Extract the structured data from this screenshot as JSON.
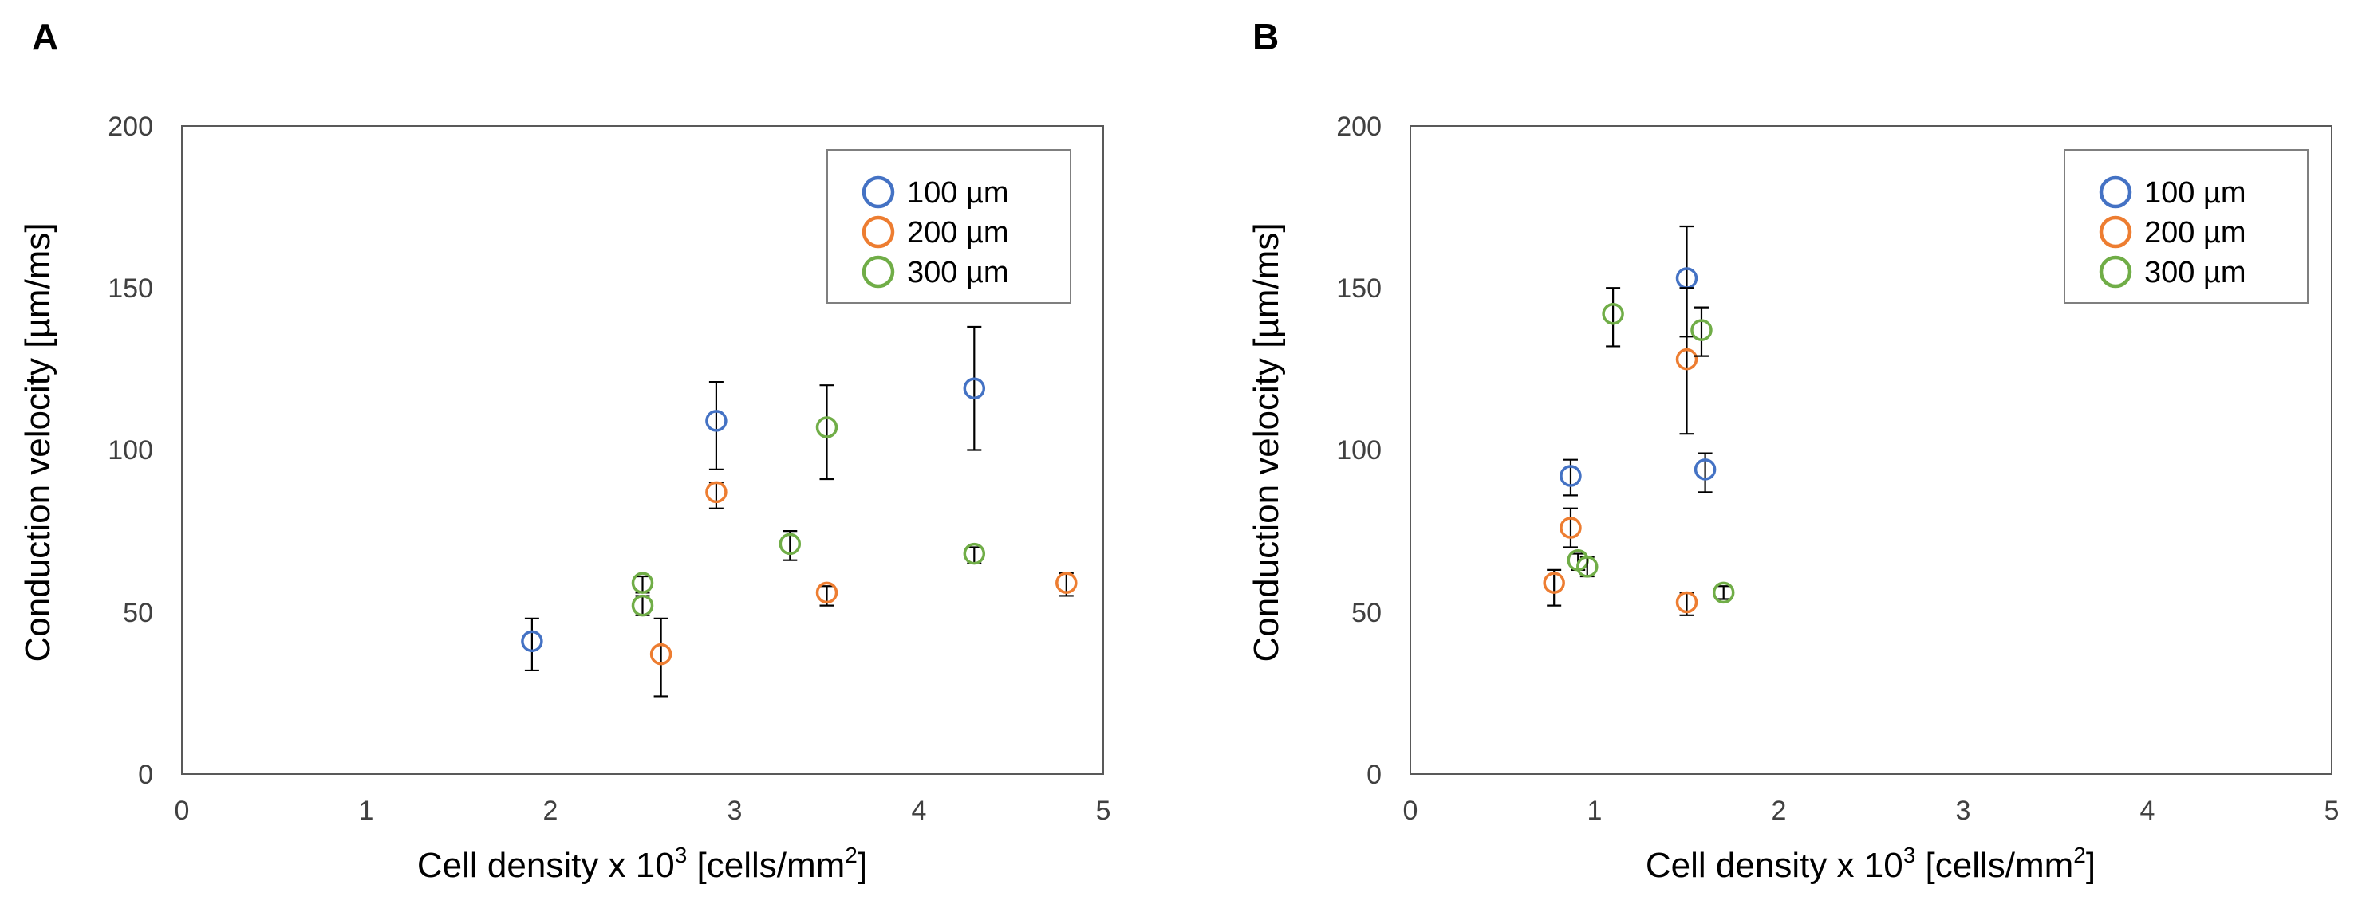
{
  "colors": {
    "s100": "#4472C4",
    "s200": "#ED7D31",
    "s300": "#70AD47"
  },
  "chart_data": [
    {
      "type": "scatter",
      "panel": "A",
      "xlabel_main": "Cell density x 10",
      "xlabel_sup3": "3",
      "xlabel_unit": " [cells/mm",
      "xlabel_sup2": "2",
      "xlabel_end": "]",
      "ylabel": "Conduction velocity  [µm/ms]",
      "xlim": [
        0,
        5
      ],
      "ylim": [
        0,
        200
      ],
      "xticks": [
        "0",
        "1",
        "2",
        "3",
        "4",
        "5"
      ],
      "yticks": [
        "0",
        "50",
        "100",
        "150",
        "200"
      ],
      "legend_position": "top-right",
      "series": [
        {
          "name": "100 µm",
          "color_key": "s100",
          "points": [
            {
              "x": 1.9,
              "y": 41,
              "err_low": 32,
              "err_high": 48
            },
            {
              "x": 2.9,
              "y": 109,
              "err_low": 94,
              "err_high": 121
            },
            {
              "x": 4.3,
              "y": 119,
              "err_low": 100,
              "err_high": 138
            }
          ]
        },
        {
          "name": "200 µm",
          "color_key": "s200",
          "points": [
            {
              "x": 2.6,
              "y": 37,
              "err_low": 24,
              "err_high": 48
            },
            {
              "x": 2.9,
              "y": 87,
              "err_low": 82,
              "err_high": 90
            },
            {
              "x": 3.5,
              "y": 56,
              "err_low": 52,
              "err_high": 58
            },
            {
              "x": 4.8,
              "y": 59,
              "err_low": 55,
              "err_high": 62
            }
          ]
        },
        {
          "name": "300 µm",
          "color_key": "s300",
          "points": [
            {
              "x": 2.5,
              "y": 59,
              "err_low": 56,
              "err_high": 61
            },
            {
              "x": 2.5,
              "y": 52,
              "err_low": 49,
              "err_high": 55
            },
            {
              "x": 3.3,
              "y": 71,
              "err_low": 66,
              "err_high": 75
            },
            {
              "x": 3.5,
              "y": 107,
              "err_low": 91,
              "err_high": 120
            },
            {
              "x": 4.3,
              "y": 68,
              "err_low": 65,
              "err_high": 70
            }
          ]
        }
      ]
    },
    {
      "type": "scatter",
      "panel": "B",
      "xlabel_main": "Cell density x 10",
      "xlabel_sup3": "3",
      "xlabel_unit": " [cells/mm",
      "xlabel_sup2": "2",
      "xlabel_end": "]",
      "ylabel": "Conduction velocity  [µm/ms]",
      "xlim": [
        0,
        5
      ],
      "ylim": [
        0,
        200
      ],
      "xticks": [
        "0",
        "1",
        "2",
        "3",
        "4",
        "5"
      ],
      "yticks": [
        "0",
        "50",
        "100",
        "150",
        "200"
      ],
      "legend_position": "top-right",
      "series": [
        {
          "name": "100 µm",
          "color_key": "s100",
          "points": [
            {
              "x": 0.87,
              "y": 92,
              "err_low": 86,
              "err_high": 97
            },
            {
              "x": 1.5,
              "y": 153,
              "err_low": 135,
              "err_high": 169
            },
            {
              "x": 1.6,
              "y": 94,
              "err_low": 87,
              "err_high": 99
            }
          ]
        },
        {
          "name": "200 µm",
          "color_key": "s200",
          "points": [
            {
              "x": 0.78,
              "y": 59,
              "err_low": 52,
              "err_high": 63
            },
            {
              "x": 0.87,
              "y": 76,
              "err_low": 70,
              "err_high": 82
            },
            {
              "x": 1.5,
              "y": 128,
              "err_low": 105,
              "err_high": 150
            },
            {
              "x": 1.5,
              "y": 53,
              "err_low": 49,
              "err_high": 56
            }
          ]
        },
        {
          "name": "300 µm",
          "color_key": "s300",
          "points": [
            {
              "x": 0.91,
              "y": 66,
              "err_low": 63,
              "err_high": 68
            },
            {
              "x": 0.96,
              "y": 64,
              "err_low": 61,
              "err_high": 67
            },
            {
              "x": 1.1,
              "y": 142,
              "err_low": 132,
              "err_high": 150
            },
            {
              "x": 1.58,
              "y": 137,
              "err_low": 129,
              "err_high": 144
            },
            {
              "x": 1.7,
              "y": 56,
              "err_low": 54,
              "err_high": 58
            }
          ]
        }
      ]
    }
  ]
}
